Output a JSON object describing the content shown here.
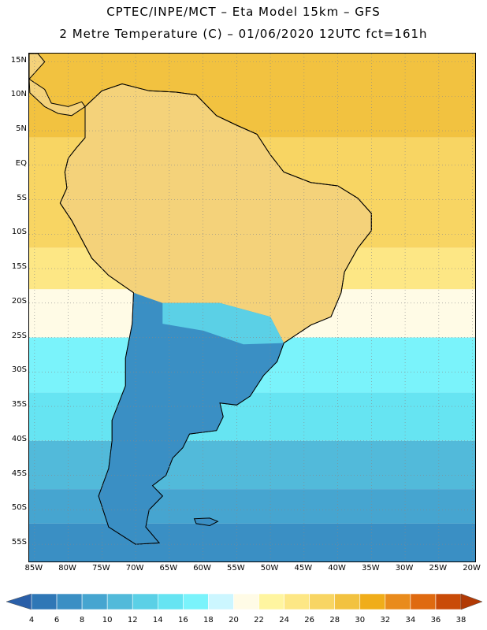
{
  "header": {
    "title_line1": "CPTEC/INPE/MCT –  Eta Model 15km – GFS",
    "title_line2": "2 Metre Temperature (C) – 01/06/2020 12UTC fct=161h"
  },
  "map": {
    "lat_labels": [
      "15N",
      "10N",
      "5N",
      "EQ",
      "5S",
      "10S",
      "15S",
      "20S",
      "25S",
      "30S",
      "35S",
      "40S",
      "45S",
      "50S",
      "55S"
    ],
    "lat_values": [
      15,
      10,
      5,
      0,
      -5,
      -10,
      -15,
      -20,
      -25,
      -30,
      -35,
      -40,
      -45,
      -50,
      -55
    ],
    "lon_labels": [
      "85W",
      "80W",
      "75W",
      "70W",
      "65W",
      "60W",
      "55W",
      "50W",
      "45W",
      "40W",
      "35W",
      "30W",
      "25W",
      "20W"
    ],
    "lon_values": [
      -85,
      -80,
      -75,
      -70,
      -65,
      -60,
      -55,
      -50,
      -45,
      -40,
      -35,
      -30,
      -25,
      -20
    ],
    "extent": {
      "lon_min": -85.8,
      "lon_max": -19.6,
      "lat_min": -57.5,
      "lat_max": 16.2
    },
    "ocean_bands": [
      {
        "lat_from": 16.2,
        "lat_to": 4,
        "value": 29
      },
      {
        "lat_from": 4,
        "lat_to": -12,
        "value": 27
      },
      {
        "lat_from": -12,
        "lat_to": -18,
        "value": 24
      },
      {
        "lat_from": -18,
        "lat_to": -25,
        "value": 21
      },
      {
        "lat_from": -25,
        "lat_to": -33,
        "value": 17
      },
      {
        "lat_from": -33,
        "lat_to": -40,
        "value": 14
      },
      {
        "lat_from": -40,
        "lat_to": -47,
        "value": 11
      },
      {
        "lat_from": -47,
        "lat_to": -52,
        "value": 9
      },
      {
        "lat_from": -52,
        "lat_to": -57.5,
        "value": 6
      }
    ],
    "land_color": "#f4d27a"
  },
  "colorbar": {
    "labels": [
      "4",
      "6",
      "8",
      "10",
      "12",
      "14",
      "16",
      "18",
      "20",
      "22",
      "24",
      "26",
      "28",
      "30",
      "32",
      "34",
      "36",
      "38"
    ],
    "colors": [
      "#2a5fa8",
      "#2f77b6",
      "#3a8fc4",
      "#46a5d0",
      "#52bada",
      "#5bd0e6",
      "#66e4f2",
      "#7af3fb",
      "#ccf6ff",
      "#fffbe6",
      "#fff5a0",
      "#fde785",
      "#f8d563",
      "#f2c240",
      "#f0ad1a",
      "#e98b1c",
      "#df6a10",
      "#c94b08",
      "#b13a05"
    ]
  }
}
